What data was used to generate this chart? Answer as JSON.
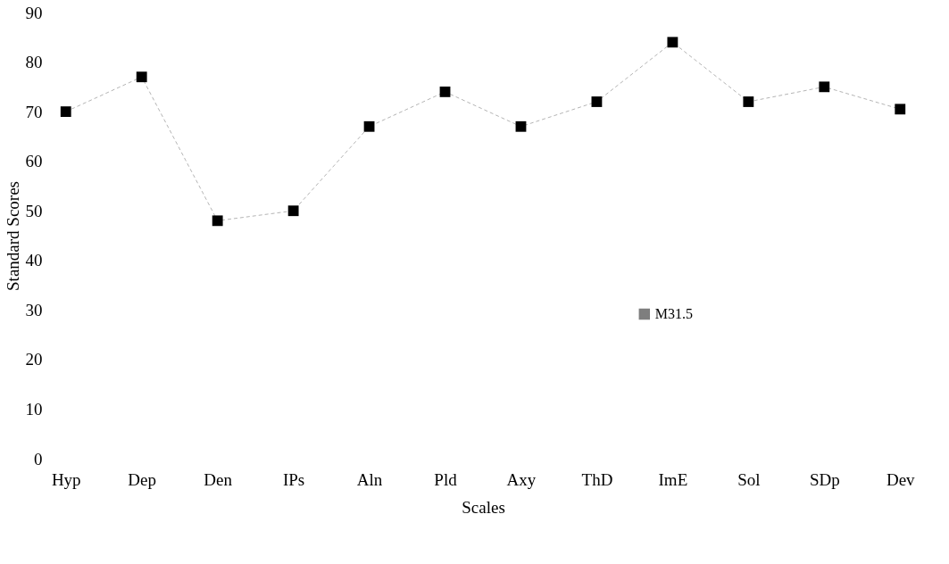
{
  "chart_data": {
    "type": "line",
    "xlabel": "Scales",
    "ylabel": "Standard Scores",
    "categories": [
      "Hyp",
      "Dep",
      "Den",
      "IPs",
      "Aln",
      "Pld",
      "Axy",
      "ThD",
      "ImE",
      "Sol",
      "SDp",
      "Dev"
    ],
    "series": [
      {
        "name": "M31.5",
        "color": "#000000",
        "values": [
          70,
          77,
          48,
          50,
          67,
          74,
          67,
          72,
          84,
          72,
          75,
          70.5
        ]
      }
    ],
    "ylim": [
      0,
      90
    ],
    "yticks": [
      0,
      10,
      20,
      30,
      40,
      50,
      60,
      70,
      80,
      90
    ],
    "marker": "square",
    "line_style": "dashed",
    "legend": "bottom right",
    "grid": false
  }
}
